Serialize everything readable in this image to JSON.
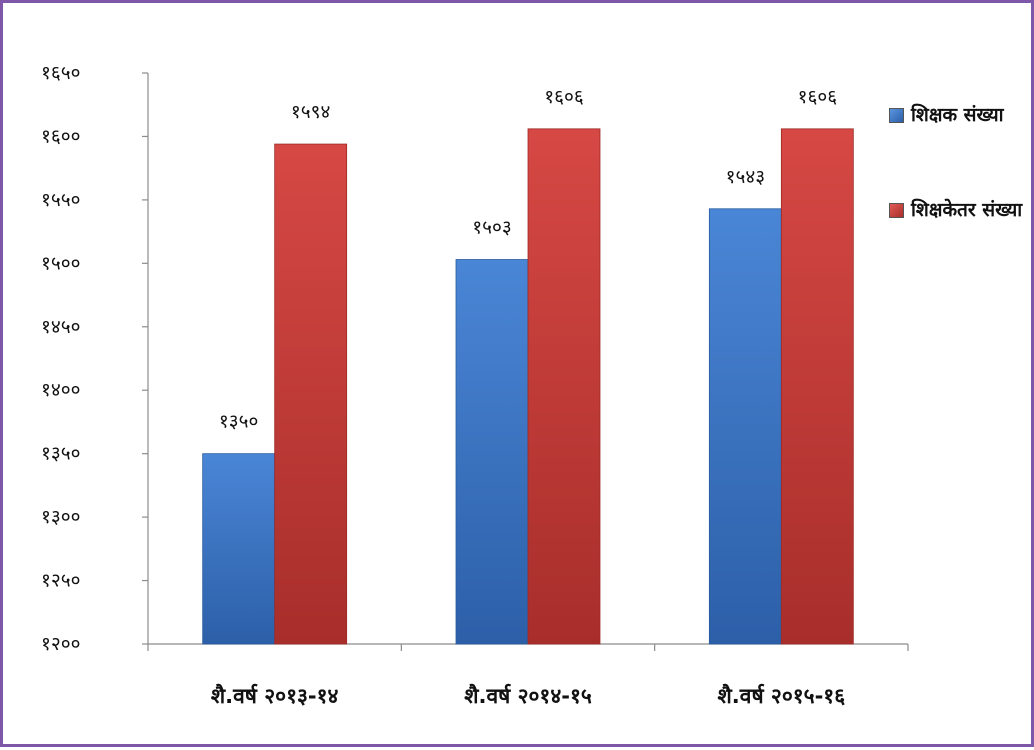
{
  "chart_data": {
    "type": "bar",
    "categories": [
      "शै.वर्ष २०१३-१४",
      "शै.वर्ष २०१४-१५",
      "शै.वर्ष २०१५-१६"
    ],
    "series": [
      {
        "name": "शिक्षक संख्या",
        "values": [
          1350,
          1503,
          1543
        ],
        "labels": [
          "१३५०",
          "१५०३",
          "१५४३"
        ],
        "color": "#3b73c3"
      },
      {
        "name": "शिक्षकेतर संख्या",
        "values": [
          1594,
          1606,
          1606
        ],
        "labels": [
          "१५९४",
          "१६०६",
          "१६०६"
        ],
        "color": "#c43a36"
      }
    ],
    "ylim": [
      1200,
      1650
    ],
    "yticks": [
      1200,
      1250,
      1300,
      1350,
      1400,
      1450,
      1500,
      1550,
      1600,
      1650
    ],
    "ytick_labels": [
      "१२००",
      "१२५०",
      "१३००",
      "१३५०",
      "१४००",
      "१४५०",
      "१५००",
      "१५५०",
      "१६००",
      "१६५०"
    ],
    "legend_position": "right",
    "grid": false
  },
  "colors": {
    "border": "#7e57a8",
    "series_blue": "#3b73c3",
    "series_red": "#c43a36"
  }
}
